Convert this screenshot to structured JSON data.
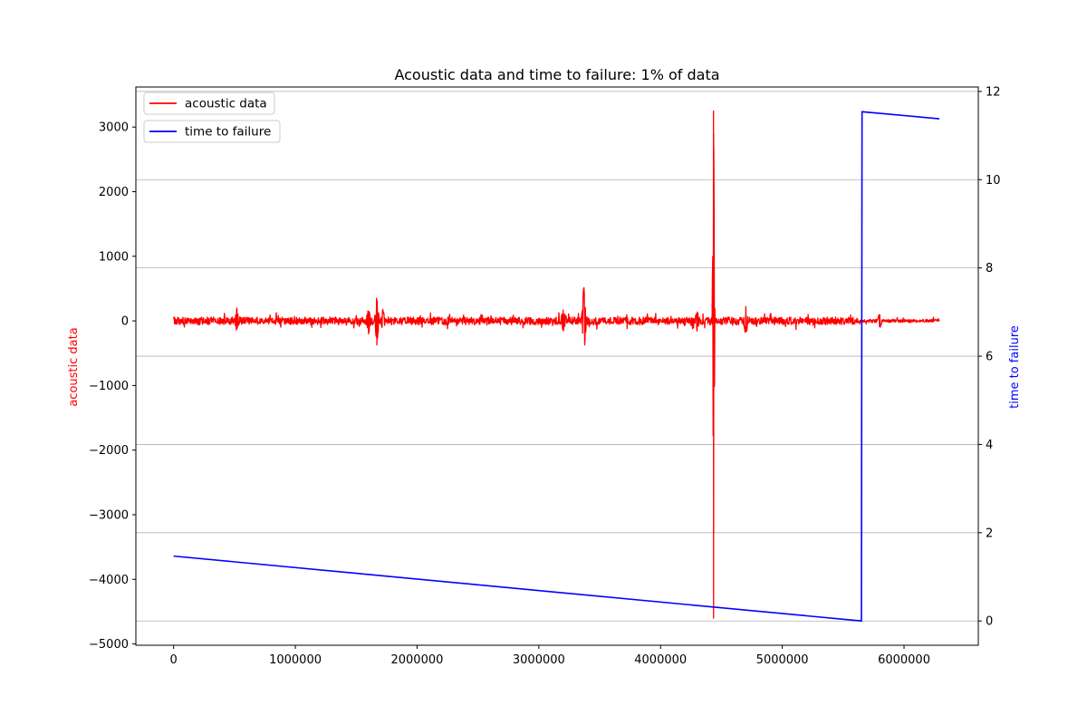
{
  "chart_data": {
    "type": "line",
    "title": "Acoustic data and time to failure: 1% of data",
    "x_ticks": [
      0,
      1000000,
      2000000,
      3000000,
      4000000,
      5000000,
      6000000
    ],
    "x_tick_labels": [
      "0",
      "1000000",
      "2000000",
      "3000000",
      "4000000",
      "5000000",
      "6000000"
    ],
    "xlim": [
      -310000,
      6610000
    ],
    "grid": "horizontal lines at right-axis ticks",
    "left_axis": {
      "label": "acoustic data",
      "color": "#ff0000",
      "ylim": [
        -5020,
        3620
      ],
      "ticks": [
        -5000,
        -4000,
        -3000,
        -2000,
        -1000,
        0,
        1000,
        2000,
        3000
      ],
      "tick_labels": [
        "−5000",
        "−4000",
        "−3000",
        "−2000",
        "−1000",
        "0",
        "1000",
        "2000",
        "3000"
      ]
    },
    "right_axis": {
      "label": "time to failure",
      "color": "#0000ff",
      "ylim": [
        -0.55,
        12.1
      ],
      "ticks": [
        0,
        2,
        4,
        6,
        8,
        10,
        12
      ],
      "tick_labels": [
        "0",
        "2",
        "4",
        "6",
        "8",
        "10",
        "12"
      ]
    },
    "legend": {
      "placement": "top-left",
      "entries": [
        "acoustic data",
        "time to failure"
      ]
    },
    "series": [
      {
        "name": "acoustic data",
        "axis": "left",
        "color": "#ff0000",
        "x_range": [
          0,
          6290000
        ],
        "baseline": 0,
        "noise_amplitude": 60,
        "bursts": [
          {
            "x": 520000,
            "amp": 200
          },
          {
            "x": 1600000,
            "amp": 250
          },
          {
            "x": 1670000,
            "amp": 420
          },
          {
            "x": 1720000,
            "amp": 200
          },
          {
            "x": 3200000,
            "amp": 220
          },
          {
            "x": 3370000,
            "amp": 600
          },
          {
            "x": 4300000,
            "amp": 180
          },
          {
            "x": 4435000,
            "amp": 3250,
            "min": -4600
          },
          {
            "x": 4700000,
            "amp": 250
          },
          {
            "x": 5800000,
            "amp": 150
          }
        ]
      },
      {
        "name": "time to failure",
        "axis": "right",
        "color": "#0000ff",
        "points": [
          [
            0,
            1.47
          ],
          [
            5650000,
            0.0
          ],
          [
            5655000,
            11.54
          ],
          [
            6290000,
            11.38
          ]
        ]
      }
    ]
  }
}
